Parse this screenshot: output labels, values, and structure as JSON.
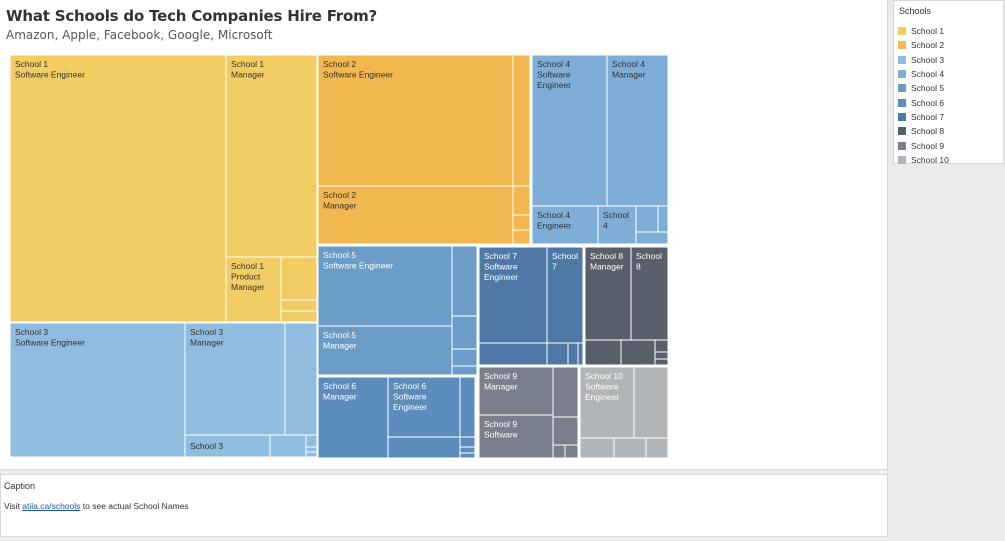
{
  "header": {
    "title": "What Schools do Tech Companies Hire From?",
    "subtitle": "Amazon, Apple, Facebook, Google, Microsoft"
  },
  "caption": {
    "title": "Caption",
    "text_before": "Visit ",
    "link_text": "atila.ca/schools",
    "text_after": " to see actual School Names"
  },
  "legend": {
    "title": "Schools",
    "items": [
      {
        "label": "School 1",
        "color": "#f2cd64"
      },
      {
        "label": "School 2",
        "color": "#f2b84f"
      },
      {
        "label": "School 3",
        "color": "#8fbcdf"
      },
      {
        "label": "School 4",
        "color": "#7eaed7"
      },
      {
        "label": "School 5",
        "color": "#6a9cc7"
      },
      {
        "label": "School 6",
        "color": "#5c8cbc"
      },
      {
        "label": "School 7",
        "color": "#4e79a7"
      },
      {
        "label": "School 8",
        "color": "#585e6a"
      },
      {
        "label": "School 9",
        "color": "#7a808b"
      },
      {
        "label": "School 10",
        "color": "#b2b5b7"
      }
    ]
  },
  "chart_data": {
    "type": "treemap",
    "title": "What Schools do Tech Companies Hire From?",
    "subtitle": "Amazon, Apple, Facebook, Google, Microsoft",
    "legend_title": "Schools",
    "legend_position": "right",
    "tiles": [
      {
        "school": "School 1",
        "role": "Software Engineer",
        "value": 585
      },
      {
        "school": "School 1",
        "role": "Manager",
        "value": 182
      },
      {
        "school": "School 1",
        "role": "Product Manager",
        "value": 36
      },
      {
        "school": "School 1",
        "role": "",
        "value": 25
      },
      {
        "school": "School 1",
        "role": "",
        "value": 7
      },
      {
        "school": "School 1",
        "role": "",
        "value": 7
      },
      {
        "school": "School 2",
        "role": "Software Engineer",
        "value": 252
      },
      {
        "school": "School 2",
        "role": "Manager",
        "value": 114
      },
      {
        "school": "School 2",
        "role": "",
        "value": 24
      },
      {
        "school": "School 2",
        "role": "",
        "value": 6
      },
      {
        "school": "School 2",
        "role": "",
        "value": 5
      },
      {
        "school": "School 2",
        "role": "",
        "value": 4
      },
      {
        "school": "School 3",
        "role": "Software Engineer",
        "value": 200
      },
      {
        "school": "School 3",
        "role": "Manager",
        "value": 99
      },
      {
        "school": "School 3",
        "role": "",
        "value": 30
      },
      {
        "school": "School 3",
        "role": "",
        "value": 50
      },
      {
        "school": "School 3",
        "role": "",
        "value": 14
      },
      {
        "school": "School 3",
        "role": "",
        "value": 10
      },
      {
        "school": "School 3",
        "role": "",
        "value": 4
      },
      {
        "school": "School 3",
        "role": "",
        "value": 4
      },
      {
        "school": "School 4",
        "role": "Software Engineer",
        "value": 112
      },
      {
        "school": "School 4",
        "role": "Manager",
        "value": 91
      },
      {
        "school": "School 4",
        "role": "Engineer",
        "value": 43
      },
      {
        "school": "School 4",
        "role": "",
        "value": 26
      },
      {
        "school": "School 4",
        "role": "",
        "value": 10
      },
      {
        "school": "School 4",
        "role": "",
        "value": 5
      },
      {
        "school": "School 4",
        "role": "",
        "value": 2
      },
      {
        "school": "School 5",
        "role": "Software Engineer",
        "value": 108
      },
      {
        "school": "School 5",
        "role": "Manager",
        "value": 86
      },
      {
        "school": "School 5",
        "role": "",
        "value": 28
      },
      {
        "school": "School 5",
        "role": "",
        "value": 18
      },
      {
        "school": "School 5",
        "role": "",
        "value": 10
      },
      {
        "school": "School 5",
        "role": "",
        "value": 7
      },
      {
        "school": "School 5",
        "role": "",
        "value": 5
      },
      {
        "school": "School 5",
        "role": "",
        "value": 3
      },
      {
        "school": "School 6",
        "role": "Manager",
        "value": 63
      },
      {
        "school": "School 6",
        "role": "Software Engineer",
        "value": 60
      },
      {
        "school": "School 6",
        "role": "",
        "value": 16
      },
      {
        "school": "School 6",
        "role": "",
        "value": 5
      },
      {
        "school": "School 6",
        "role": "",
        "value": 3
      },
      {
        "school": "School 6",
        "role": "",
        "value": 2
      },
      {
        "school": "School 6",
        "role": "",
        "value": 2
      },
      {
        "school": "School 7",
        "role": "Software Engineer",
        "value": 88
      },
      {
        "school": "School 7",
        "role": "",
        "value": 47
      },
      {
        "school": "School 7",
        "role": "",
        "value": 20
      },
      {
        "school": "School 7",
        "role": "",
        "value": 5
      },
      {
        "school": "School 7",
        "role": "",
        "value": 3
      },
      {
        "school": "School 7",
        "role": "",
        "value": 2
      },
      {
        "school": "School 8",
        "role": "Manager",
        "value": 58
      },
      {
        "school": "School 8",
        "role": "",
        "value": 45
      },
      {
        "school": "School 8",
        "role": "",
        "value": 13
      },
      {
        "school": "School 8",
        "role": "",
        "value": 12
      },
      {
        "school": "School 8",
        "role": "",
        "value": 3
      },
      {
        "school": "School 8",
        "role": "",
        "value": 2
      },
      {
        "school": "School 8",
        "role": "",
        "value": 2
      },
      {
        "school": "School 9",
        "role": "Manager",
        "value": 46
      },
      {
        "school": "School 9",
        "role": "Software",
        "value": 42
      },
      {
        "school": "School 9",
        "role": "",
        "value": 19
      },
      {
        "school": "School 9",
        "role": "",
        "value": 13
      },
      {
        "school": "School 9",
        "role": "",
        "value": 5
      },
      {
        "school": "School 9",
        "role": "",
        "value": 4
      },
      {
        "school": "School 10",
        "role": "Software Engineer",
        "value": 60
      },
      {
        "school": "School 10",
        "role": "",
        "value": 33
      },
      {
        "school": "School 10",
        "role": "",
        "value": 12
      },
      {
        "school": "School 10",
        "role": "",
        "value": 11
      },
      {
        "school": "School 10",
        "role": "",
        "value": 12
      },
      {
        "school": "School 10",
        "role": "",
        "value": 7
      },
      {
        "school": "School 10",
        "role": "",
        "value": 3
      },
      {
        "school": "School 10",
        "role": "",
        "value": 3
      }
    ]
  }
}
